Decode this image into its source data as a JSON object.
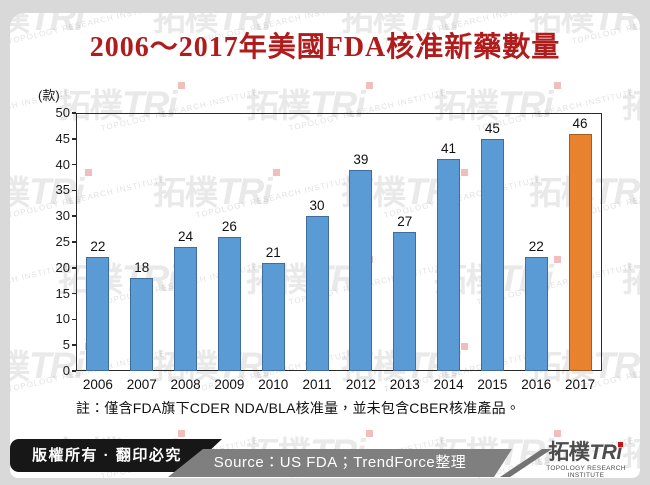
{
  "title": {
    "text": "2006～2017年美國FDA核准新藥數量",
    "color": "#b01c1c"
  },
  "chart_data": {
    "type": "bar",
    "title": "2006～2017年美國FDA核准新藥數量",
    "unit_label": "(款)",
    "categories": [
      "2006",
      "2007",
      "2008",
      "2009",
      "2010",
      "2011",
      "2012",
      "2013",
      "2014",
      "2015",
      "2016",
      "2017"
    ],
    "values": [
      22,
      18,
      24,
      26,
      21,
      30,
      39,
      27,
      41,
      45,
      22,
      46
    ],
    "ylabel": "(款)",
    "ylim": [
      0,
      50
    ],
    "ytick_step": 5,
    "yticks": [
      0,
      5,
      10,
      15,
      20,
      25,
      30,
      35,
      40,
      45,
      50
    ],
    "grid": false,
    "legend": "none",
    "data_labels": true,
    "bar_color": "#5b9bd5",
    "bar_border_color": "#3f6e9e",
    "highlight_index": 11,
    "highlight_color": "#e8822e",
    "highlight_border_color": "#a65e20"
  },
  "note": {
    "text": "註：僅含FDA旗下CDER NDA/BLA核准量，並未包含CBER核准產品。"
  },
  "footer": {
    "copyright": "版權所有 · 翻印必究",
    "source": "Source：US FDA；TrendForce整理",
    "logo": {
      "cn": "拓樸",
      "en": "TRi",
      "sub": "TOPOLOGY RESEARCH INSTITUTE"
    }
  },
  "watermark": {
    "cn": "拓樸",
    "en": "TRi",
    "sub": "TOPOLOGY RESEARCH INSTITUTE"
  },
  "colors": {
    "page_bg": "#d9d9d9",
    "panel_bg": "#ffffff",
    "footer_black": "#171717",
    "footer_gray": "#7f7f7f",
    "divider_gray": "#737373",
    "logo_gray": "#4c4c4c",
    "logo_red": "#cc1111",
    "axis": "#2a2a2a"
  }
}
